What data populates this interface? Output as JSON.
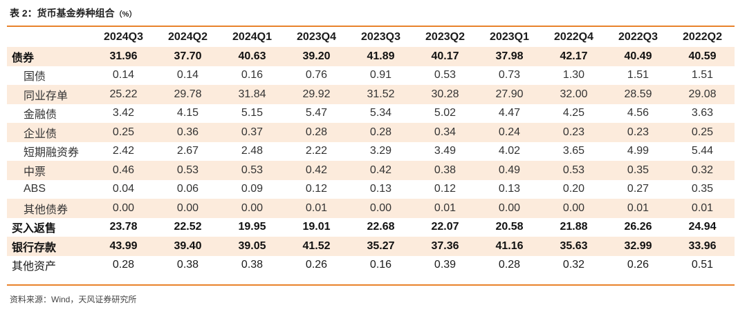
{
  "table": {
    "title": "表 2：货币基金券种组合",
    "unit": "（%）",
    "corner": "",
    "columns": [
      "2024Q3",
      "2024Q2",
      "2024Q1",
      "2023Q4",
      "2023Q3",
      "2023Q2",
      "2023Q1",
      "2022Q4",
      "2022Q3",
      "2022Q2"
    ],
    "rows": [
      {
        "label": "债券",
        "level": "main",
        "shaded": true,
        "values": [
          "31.96",
          "37.70",
          "40.63",
          "39.20",
          "41.89",
          "40.17",
          "37.98",
          "42.17",
          "40.49",
          "40.59"
        ]
      },
      {
        "label": "国债",
        "level": "sub",
        "shaded": false,
        "values": [
          "0.14",
          "0.14",
          "0.16",
          "0.76",
          "0.91",
          "0.53",
          "0.73",
          "1.30",
          "1.51",
          "1.51"
        ]
      },
      {
        "label": "同业存单",
        "level": "sub",
        "shaded": true,
        "values": [
          "25.22",
          "29.78",
          "31.84",
          "29.92",
          "31.52",
          "30.28",
          "27.90",
          "32.00",
          "28.59",
          "29.08"
        ]
      },
      {
        "label": "金融债",
        "level": "sub",
        "shaded": false,
        "values": [
          "3.42",
          "4.15",
          "5.15",
          "5.47",
          "5.34",
          "5.02",
          "4.47",
          "4.25",
          "4.56",
          "3.63"
        ]
      },
      {
        "label": "企业债",
        "level": "sub",
        "shaded": true,
        "values": [
          "0.25",
          "0.36",
          "0.37",
          "0.28",
          "0.28",
          "0.34",
          "0.24",
          "0.23",
          "0.23",
          "0.25"
        ]
      },
      {
        "label": "短期融资券",
        "level": "sub",
        "shaded": false,
        "values": [
          "2.42",
          "2.67",
          "2.48",
          "2.22",
          "3.29",
          "3.49",
          "4.02",
          "3.65",
          "4.99",
          "5.44"
        ]
      },
      {
        "label": "中票",
        "level": "sub",
        "shaded": true,
        "values": [
          "0.46",
          "0.53",
          "0.53",
          "0.42",
          "0.42",
          "0.38",
          "0.49",
          "0.53",
          "0.35",
          "0.32"
        ]
      },
      {
        "label": "ABS",
        "level": "sub",
        "shaded": false,
        "values": [
          "0.04",
          "0.06",
          "0.09",
          "0.12",
          "0.13",
          "0.12",
          "0.13",
          "0.20",
          "0.27",
          "0.35"
        ]
      },
      {
        "label": "其他债券",
        "level": "sub",
        "shaded": true,
        "values": [
          "0.00",
          "0.00",
          "0.00",
          "0.01",
          "0.00",
          "0.01",
          "0.00",
          "0.00",
          "0.01",
          "0.01"
        ]
      },
      {
        "label": "买入返售",
        "level": "main",
        "shaded": false,
        "values": [
          "23.78",
          "22.52",
          "19.95",
          "19.01",
          "22.68",
          "22.07",
          "20.58",
          "21.88",
          "26.26",
          "24.94"
        ]
      },
      {
        "label": "银行存款",
        "level": "main",
        "shaded": true,
        "values": [
          "43.99",
          "39.40",
          "39.05",
          "41.52",
          "35.27",
          "37.36",
          "41.16",
          "35.63",
          "32.99",
          "33.96"
        ]
      },
      {
        "label": "其他资产",
        "level": "plain",
        "shaded": false,
        "values": [
          "0.28",
          "0.38",
          "0.38",
          "0.26",
          "0.16",
          "0.39",
          "0.28",
          "0.32",
          "0.26",
          "0.51"
        ]
      }
    ],
    "source": "资料来源：Wind，天风证券研究所"
  },
  "colors": {
    "accent_rule": "#e8822a",
    "row_shade": "#fcebdc"
  }
}
